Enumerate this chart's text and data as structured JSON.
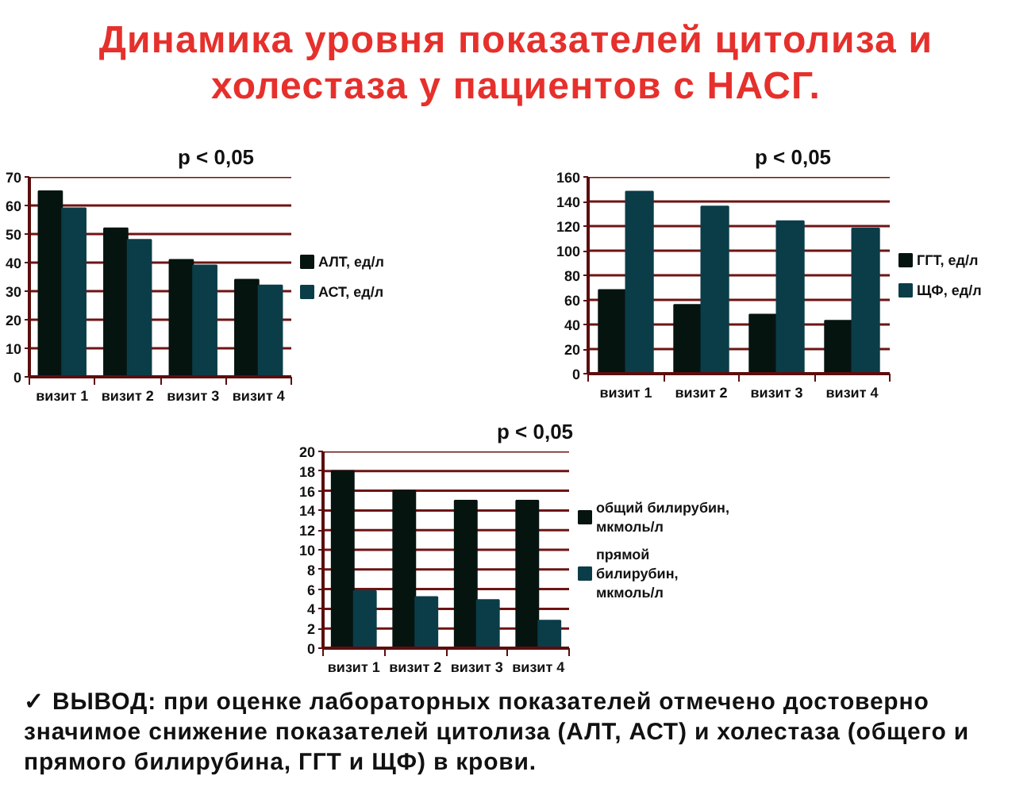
{
  "chart_data": [
    {
      "type": "other",
      "title": "Динамика уровня показателей цитолиза и холестаза у пациентов с НАСГ."
    },
    {
      "type": "bar",
      "title": "p < 0,05",
      "categories": [
        "визит 1",
        "визит 2",
        "визит 3",
        "визит 4"
      ],
      "series": [
        {
          "name": "АЛТ, ед/л",
          "color": "#061410",
          "values": [
            65,
            52,
            41,
            34
          ]
        },
        {
          "name": "АСТ, ед/л",
          "color": "#0b3d48",
          "values": [
            59,
            48,
            39,
            32
          ]
        }
      ],
      "ylim": [
        0,
        70
      ],
      "yticks": [
        0,
        10,
        20,
        30,
        40,
        50,
        60,
        70
      ],
      "grid": "y",
      "legend": "right"
    },
    {
      "type": "bar",
      "title": "p < 0,05",
      "categories": [
        "визит 1",
        "визит 2",
        "визит 3",
        "визит 4"
      ],
      "series": [
        {
          "name": "ГГТ, ед/л",
          "color": "#061410",
          "values": [
            68,
            56,
            48,
            43
          ]
        },
        {
          "name": "ЩФ, ед/л",
          "color": "#0b3d48",
          "values": [
            148,
            136,
            124,
            118
          ]
        }
      ],
      "ylim": [
        0,
        160
      ],
      "yticks": [
        0,
        20,
        40,
        60,
        80,
        100,
        120,
        140,
        160
      ],
      "grid": "y",
      "legend": "right"
    },
    {
      "type": "bar",
      "title": "p < 0,05",
      "categories": [
        "визит 1",
        "визит 2",
        "визит 3",
        "визит 4"
      ],
      "series": [
        {
          "name": "общий билирубин, мкмоль/л",
          "color": "#061410",
          "values": [
            18,
            16,
            15,
            15
          ]
        },
        {
          "name": "прямой билирубин, мкмоль/л",
          "color": "#0b3d48",
          "values": [
            5.8,
            5.2,
            4.9,
            2.8
          ]
        }
      ],
      "ylim": [
        0,
        20
      ],
      "yticks": [
        0,
        2,
        4,
        6,
        8,
        10,
        12,
        14,
        16,
        18,
        20
      ],
      "grid": "y",
      "legend": "right"
    },
    {
      "type": "other",
      "annotations": [
        "✓ ВЫВОД: при оценке лабораторных показателей отмечено достоверно значимое снижение показателей цитолиза (АЛТ, АСТ) и холестаза (общего и прямого билирубина, ГГТ и ЩФ) в крови."
      ]
    }
  ]
}
